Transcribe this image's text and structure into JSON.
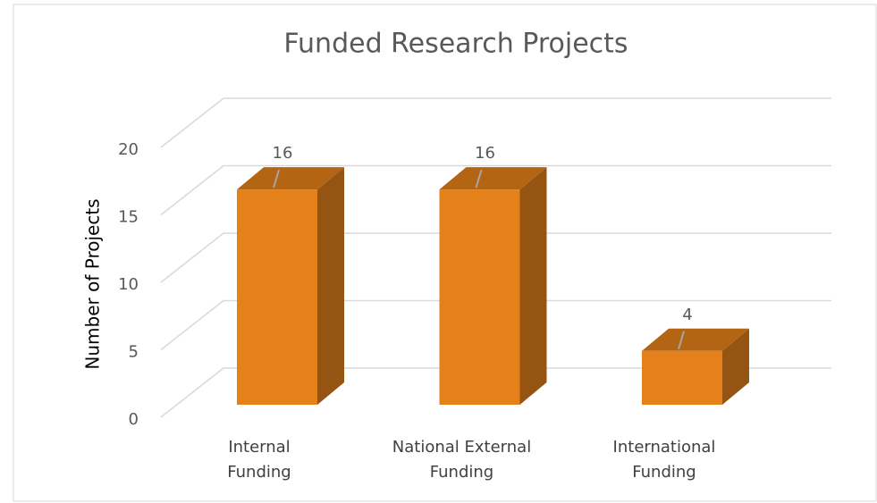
{
  "chart_data": {
    "type": "bar3d",
    "title": "Funded Research Projects",
    "y_label": "Number of Projects",
    "categories": [
      "Internal\nFunding",
      "National External\nFunding",
      "International\nFunding"
    ],
    "values": [
      16,
      16,
      4
    ],
    "color": "#e5811a",
    "ylim": [
      0,
      20
    ],
    "yticks": [
      0,
      5,
      10,
      15,
      20
    ],
    "grid": true
  }
}
